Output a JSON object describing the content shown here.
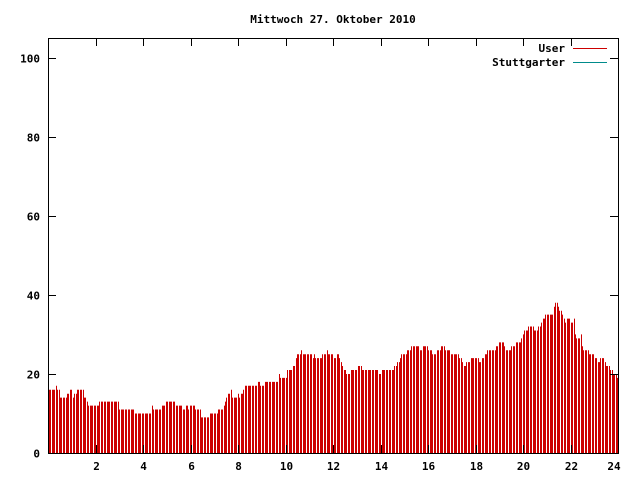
{
  "chart_data": {
    "type": "bar",
    "title": "Mittwoch 27. Oktober 2010",
    "xlabel": "",
    "ylabel": "",
    "xlim": [
      0,
      24
    ],
    "ylim": [
      0,
      105
    ],
    "x_ticks": [
      "2",
      "4",
      "6",
      "8",
      "10",
      "12",
      "14",
      "16",
      "18",
      "20",
      "22",
      "24"
    ],
    "y_ticks": [
      "0",
      "20",
      "40",
      "60",
      "80",
      "100"
    ],
    "grid": false,
    "legend_position": "top-right",
    "series": [
      {
        "name": "User",
        "color": "#cc0000",
        "values": [
          16,
          16,
          16,
          16,
          16,
          17,
          16,
          16,
          14,
          14,
          14,
          14,
          14,
          15,
          15,
          16,
          16,
          14,
          15,
          15,
          16,
          16,
          16,
          16,
          16,
          14,
          14,
          13,
          12,
          12,
          12,
          12,
          12,
          12,
          12,
          12,
          13,
          13,
          13,
          13,
          13,
          13,
          13,
          13,
          13,
          13,
          13,
          13,
          13,
          13,
          11,
          11,
          11,
          11,
          11,
          11,
          11,
          11,
          11,
          11,
          11,
          10,
          10,
          10,
          10,
          10,
          10,
          10,
          10,
          10,
          10,
          10,
          10,
          12,
          11,
          11,
          11,
          11,
          11,
          11,
          12,
          12,
          12,
          13,
          13,
          13,
          13,
          13,
          13,
          13,
          12,
          12,
          12,
          12,
          12,
          11,
          11,
          12,
          12,
          11,
          12,
          12,
          12,
          12,
          11,
          11,
          11,
          11,
          9,
          9,
          9,
          9,
          9,
          9,
          10,
          10,
          10,
          10,
          10,
          10,
          11,
          11,
          11,
          11,
          12,
          13,
          14,
          15,
          15,
          16,
          14,
          14,
          14,
          14,
          15,
          14,
          15,
          15,
          16,
          17,
          17,
          17,
          17,
          17,
          17,
          17,
          17,
          17,
          18,
          18,
          17,
          17,
          17,
          18,
          18,
          18,
          18,
          18,
          18,
          18,
          18,
          18,
          18,
          20,
          19,
          19,
          19,
          19,
          19,
          21,
          21,
          21,
          21,
          22,
          22,
          24,
          25,
          25,
          25,
          26,
          25,
          25,
          25,
          25,
          25,
          25,
          25,
          24,
          25,
          24,
          24,
          24,
          24,
          24,
          25,
          25,
          25,
          26,
          25,
          25,
          25,
          25,
          24,
          24,
          25,
          25,
          24,
          23,
          22,
          21,
          21,
          20,
          20,
          20,
          21,
          21,
          21,
          21,
          21,
          22,
          22,
          22,
          21,
          21,
          21,
          21,
          21,
          21,
          21,
          21,
          21,
          21,
          21,
          21,
          20,
          20,
          21,
          21,
          21,
          21,
          21,
          21,
          21,
          21,
          21,
          22,
          22,
          23,
          23,
          24,
          25,
          25,
          25,
          25,
          26,
          26,
          26,
          27,
          27,
          27,
          27,
          27,
          27,
          26,
          26,
          27,
          27,
          27,
          27,
          26,
          26,
          26,
          25,
          25,
          25,
          26,
          26,
          26,
          27,
          27,
          27,
          26,
          26,
          26,
          26,
          25,
          25,
          25,
          25,
          25,
          25,
          24,
          24,
          23,
          22,
          22,
          23,
          23,
          23,
          24,
          24,
          24,
          24,
          24,
          24,
          23,
          23,
          24,
          24,
          25,
          25,
          26,
          26,
          26,
          26,
          26,
          26,
          27,
          27,
          28,
          28,
          28,
          28,
          27,
          26,
          26,
          26,
          26,
          27,
          27,
          27,
          28,
          28,
          28,
          28,
          29,
          30,
          31,
          31,
          31,
          32,
          32,
          32,
          32,
          31,
          31,
          31,
          32,
          32,
          33,
          34,
          34,
          35,
          35,
          35,
          35,
          35,
          35,
          37,
          38,
          38,
          37,
          36,
          36,
          35,
          34,
          33,
          34,
          34,
          34,
          33,
          33,
          34,
          30,
          29,
          29,
          29,
          30,
          27,
          26,
          26,
          26,
          26,
          25,
          25,
          25,
          25,
          24,
          24,
          23,
          23,
          24,
          24,
          24,
          23,
          22,
          22,
          22,
          21,
          21,
          20,
          20,
          20,
          19
        ]
      },
      {
        "name": "Stuttgarter",
        "color": "#008b8b",
        "values": []
      }
    ]
  }
}
